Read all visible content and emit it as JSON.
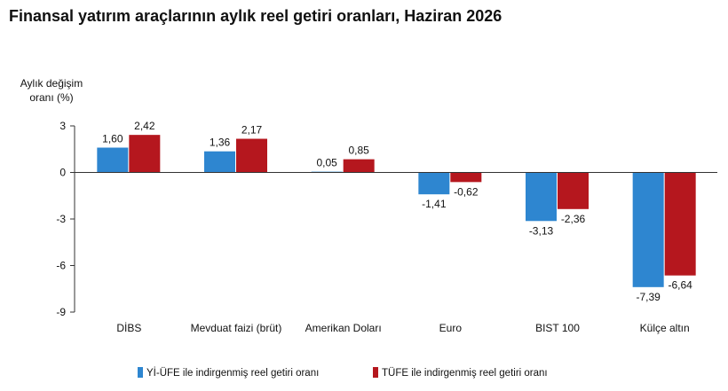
{
  "title": "Finansal yatırım araçlarının aylık reel getiri oranları, Haziran 2026",
  "chart_data": {
    "type": "bar",
    "title": "Finansal yatırım araçlarının aylık reel getiri oranları, Haziran 2026",
    "ylabel_line1": "Aylık değişim",
    "ylabel_line2": "oranı (%)",
    "xlabel": "",
    "ylim": [
      -9,
      3
    ],
    "yticks": [
      3,
      0,
      -3,
      -6,
      -9
    ],
    "grid": false,
    "legend_position": "bottom",
    "categories": [
      "DİBS",
      "Mevduat faizi (brüt)",
      "Amerikan Doları",
      "Euro",
      "BIST 100",
      "Külçe altın"
    ],
    "series": [
      {
        "name": "Yİ-ÜFE ile indirgenmiş reel getiri oranı",
        "color": "#2E86D0",
        "values": [
          1.6,
          1.36,
          0.05,
          -1.41,
          -3.13,
          -7.39
        ],
        "labels": [
          "1,60",
          "1,36",
          "0,05",
          "-1,41",
          "-3,13",
          "-7,39"
        ]
      },
      {
        "name": "TÜFE ile indirgenmiş reel getiri oranı",
        "color": "#B5171E",
        "values": [
          2.42,
          2.17,
          0.85,
          -0.62,
          -2.36,
          -6.64
        ],
        "labels": [
          "2,42",
          "2,17",
          "0,85",
          "-0,62",
          "-2,36",
          "-6,64"
        ]
      }
    ]
  }
}
